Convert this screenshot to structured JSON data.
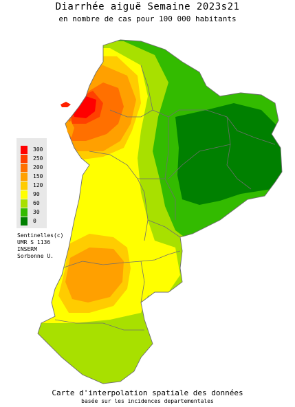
{
  "title": "Diarrhée aiguë Semaine 2023s21",
  "subtitle": "en nombre de cas pour 100 000 habitants",
  "legend": {
    "items": [
      {
        "label": "300",
        "color": "#ff0000"
      },
      {
        "label": "250",
        "color": "#ff4000"
      },
      {
        "label": "200",
        "color": "#ff7000"
      },
      {
        "label": "150",
        "color": "#ffa000"
      },
      {
        "label": "120",
        "color": "#ffcc00"
      },
      {
        "label": "90",
        "color": "#ffff00"
      },
      {
        "label": "60",
        "color": "#a8e000"
      },
      {
        "label": "30",
        "color": "#33bb00"
      },
      {
        "label": "0",
        "color": "#008000"
      }
    ]
  },
  "credits": [
    "Sentinelles(c)",
    "UMR S 1136",
    "INSERM",
    "Sorbonne U."
  ],
  "footer": {
    "line1": "Carte d'interpolation spatiale des données",
    "line2": "basée sur les incidences departementales"
  }
}
